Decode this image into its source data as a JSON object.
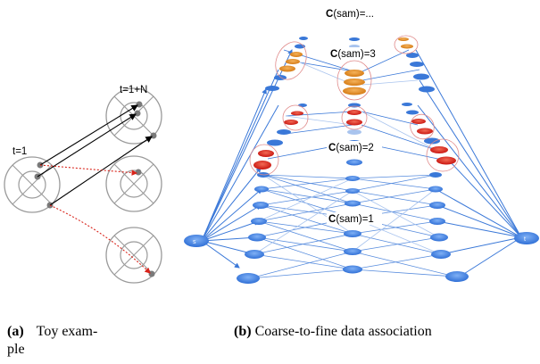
{
  "panel_a": {
    "label_t1": "t=1",
    "label_t1n": "t=1+N"
  },
  "panel_b": {
    "label_level_top": "(sam)=...",
    "label_level_3": "(sam)=3",
    "label_level_2": "(sam)=2",
    "label_level_1": "(sam)=1",
    "level_prefix": "C",
    "source_label": "s",
    "sink_label": "t"
  },
  "captions": {
    "a_tag": "(a)",
    "a_text_line1": "Toy exam-",
    "a_text_line2": "ple",
    "b_tag": "(b)",
    "b_text": "Coarse-to-fine data association"
  },
  "colors": {
    "orange": "#e08a1e",
    "red": "#d9231a",
    "blue": "#3a78d8",
    "light_blue": "#a9c4ee",
    "gray": "#8a8a8a"
  }
}
